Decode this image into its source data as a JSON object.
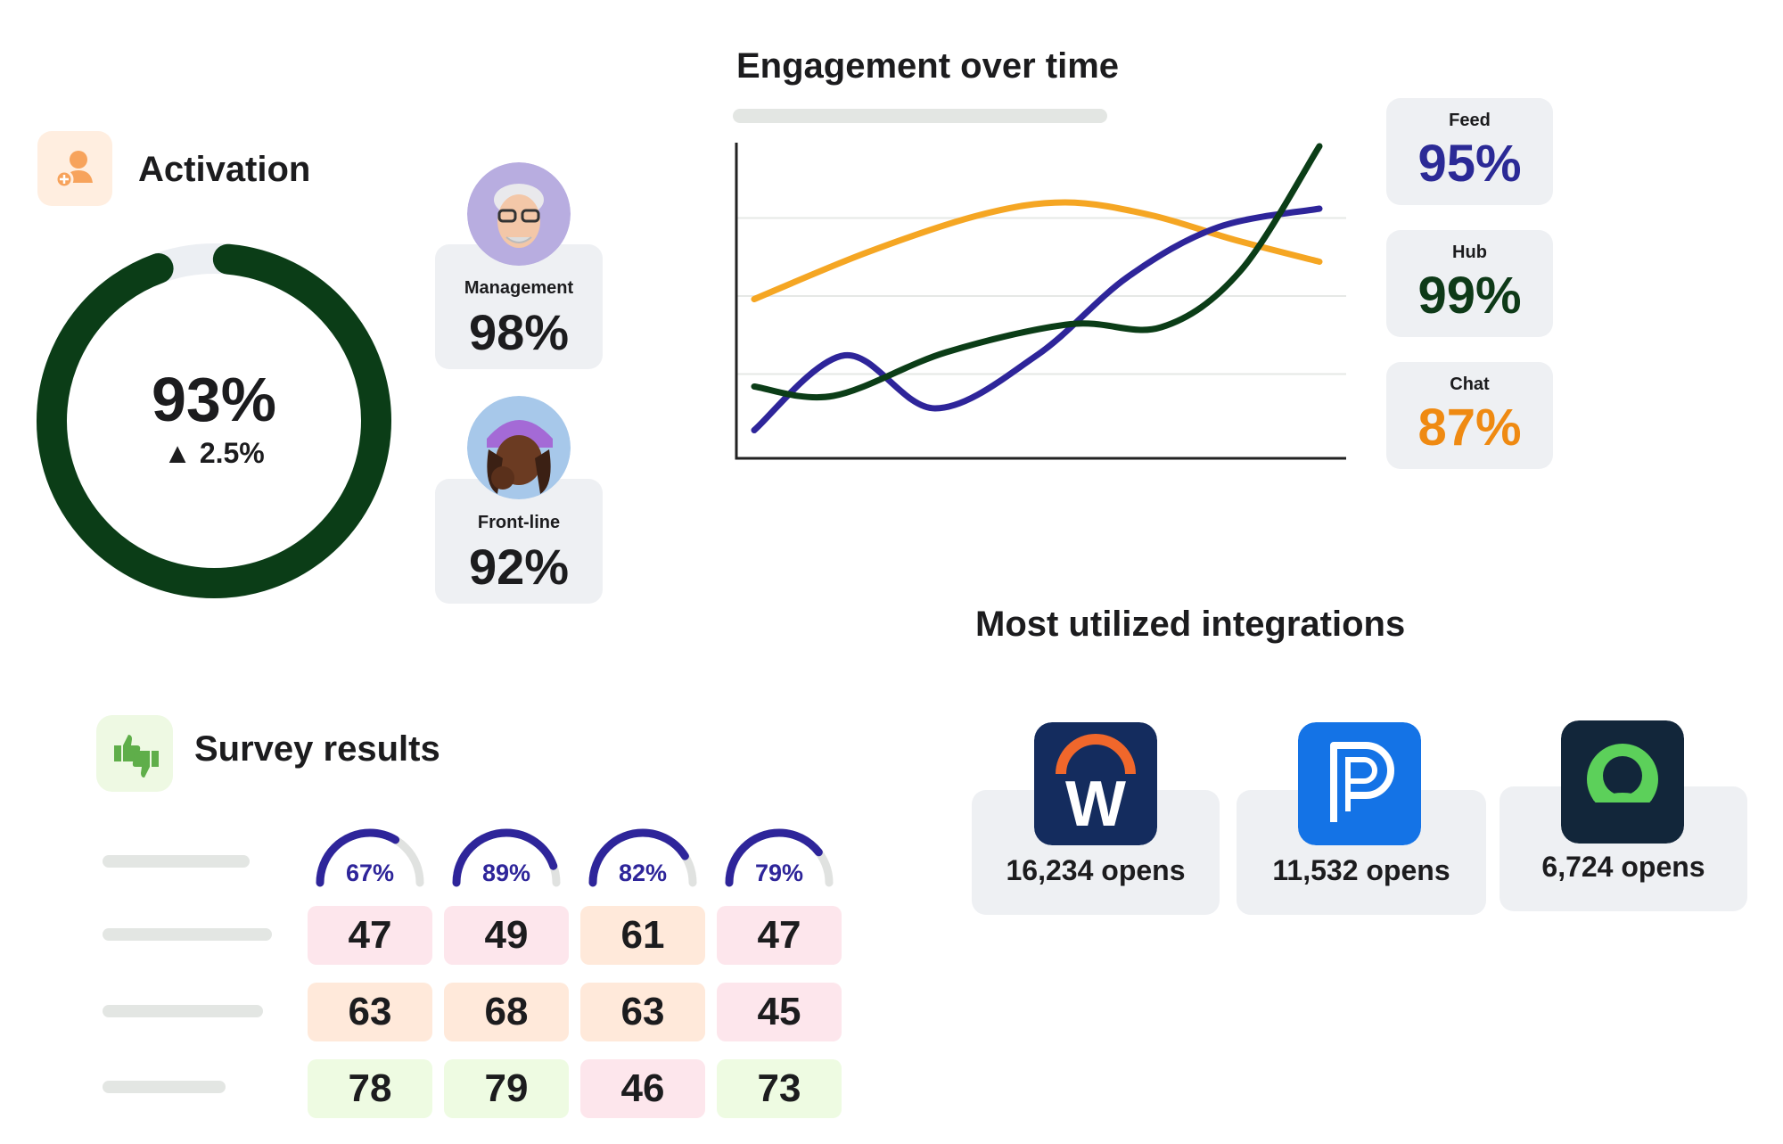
{
  "activation": {
    "title": "Activation",
    "value": "93%",
    "delta": "▲ 2.5%",
    "fraction": 0.93,
    "ring_color": "#0b3d17",
    "track_color": "#eceff3",
    "icon": "user-add-icon",
    "segments": [
      {
        "label": "Management",
        "value": "98%",
        "avatar": "memoji-grey-hair-glasses"
      },
      {
        "label": "Front-line",
        "value": "92%",
        "avatar": "memoji-purple-cap"
      }
    ]
  },
  "engagement": {
    "title": "Engagement over time",
    "stats": [
      {
        "label": "Feed",
        "value": "95%",
        "color": "#2b2a96"
      },
      {
        "label": "Hub",
        "value": "99%",
        "color": "#0e3a18"
      },
      {
        "label": "Chat",
        "value": "87%",
        "color": "#ef8a12"
      }
    ]
  },
  "chart_data": {
    "type": "line",
    "title": "Engagement over time",
    "xlabel": "",
    "ylabel": "",
    "grid": true,
    "series": [
      {
        "name": "Chat",
        "color": "#f5a623",
        "x": [
          0,
          0.2,
          0.4,
          0.55,
          0.7,
          0.85,
          1.0
        ],
        "values": [
          0.51,
          0.66,
          0.78,
          0.82,
          0.78,
          0.7,
          0.63
        ]
      },
      {
        "name": "Feed",
        "color": "#2e259a",
        "x": [
          0,
          0.16,
          0.32,
          0.5,
          0.66,
          0.82,
          1.0
        ],
        "values": [
          0.09,
          0.33,
          0.16,
          0.33,
          0.58,
          0.74,
          0.8
        ]
      },
      {
        "name": "Hub",
        "color": "#0b3d17",
        "x": [
          0,
          0.14,
          0.34,
          0.56,
          0.72,
          0.86,
          1.0
        ],
        "values": [
          0.23,
          0.2,
          0.34,
          0.43,
          0.42,
          0.6,
          1.0
        ]
      }
    ]
  },
  "integrations": {
    "title": "Most utilized integrations",
    "items": [
      {
        "label": "16,234 opens",
        "icon": "workday-w-icon"
      },
      {
        "label": "11,532 opens",
        "icon": "p-app-icon"
      },
      {
        "label": "6,724 opens",
        "icon": "green-ring-app-icon"
      }
    ]
  },
  "survey": {
    "title": "Survey results",
    "icon": "thumbs-up-down-icon",
    "colors": {
      "pink": "#fde6ec",
      "peach": "#ffe9da",
      "green": "#eefbe2",
      "gauge": "#2e259a",
      "gauge_track": "#e0e2e0"
    },
    "gauges": [
      {
        "label": "67%",
        "fraction": 0.67
      },
      {
        "label": "89%",
        "fraction": 0.89
      },
      {
        "label": "82%",
        "fraction": 0.82
      },
      {
        "label": "79%",
        "fraction": 0.79
      }
    ],
    "rows": [
      {
        "cells": [
          {
            "value": "47",
            "tone": "pink"
          },
          {
            "value": "49",
            "tone": "pink"
          },
          {
            "value": "61",
            "tone": "peach"
          },
          {
            "value": "47",
            "tone": "pink"
          }
        ]
      },
      {
        "cells": [
          {
            "value": "63",
            "tone": "peach"
          },
          {
            "value": "68",
            "tone": "peach"
          },
          {
            "value": "63",
            "tone": "peach"
          },
          {
            "value": "45",
            "tone": "pink"
          }
        ]
      },
      {
        "cells": [
          {
            "value": "78",
            "tone": "green"
          },
          {
            "value": "79",
            "tone": "green"
          },
          {
            "value": "46",
            "tone": "pink"
          },
          {
            "value": "73",
            "tone": "green"
          }
        ]
      }
    ]
  }
}
